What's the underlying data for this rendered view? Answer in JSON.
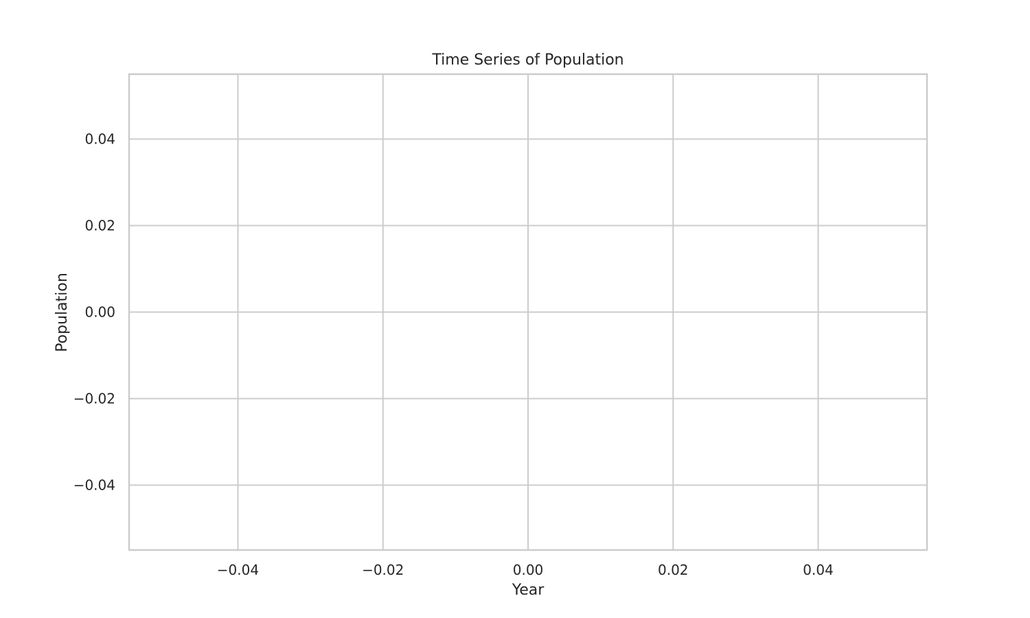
{
  "chart_data": {
    "type": "line",
    "title": "Time Series of Population",
    "xlabel": "Year",
    "ylabel": "Population",
    "x": [],
    "series": [
      {
        "values": []
      }
    ],
    "xlim": [
      -0.055,
      0.055
    ],
    "ylim": [
      -0.055,
      0.055
    ],
    "xticks": [
      -0.04,
      -0.02,
      0.0,
      0.02,
      0.04
    ],
    "yticks": [
      -0.04,
      -0.02,
      0.0,
      0.02,
      0.04
    ],
    "xtick_labels": [
      "−0.04",
      "−0.02",
      "0.00",
      "0.02",
      "0.04"
    ],
    "ytick_labels": [
      "−0.04",
      "−0.02",
      "0.00",
      "0.02",
      "0.04"
    ],
    "grid": true,
    "legend": "none",
    "colors": {
      "grid": "#cccccc",
      "text": "#262626",
      "background": "#ffffff"
    }
  }
}
